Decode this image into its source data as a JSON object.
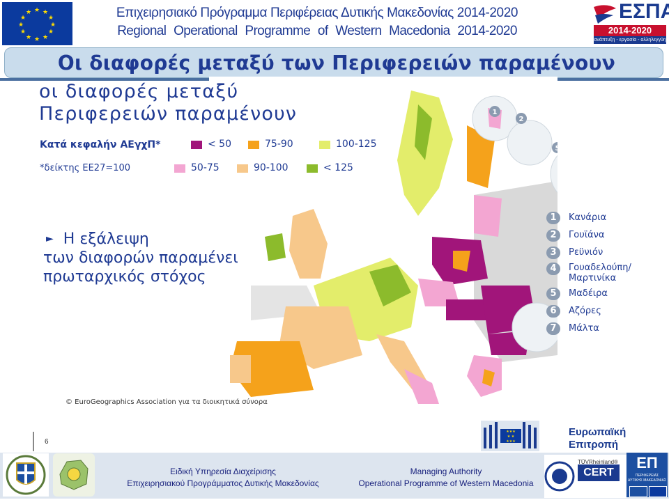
{
  "header": {
    "title_gr": "Επιχειρησιακό Πρόγραμμα Περιφέρειας Δυτικής Μακεδονίας  2014-2020",
    "title_en": "Regional  Operational  Programme  of  Western  Macedonia 2014-2020",
    "espa_logo_text": "ΕΣΠΑ",
    "espa_years": "2014-2020",
    "espa_slogan": "ανάπτυξη - εργασία - αλληλεγγύη"
  },
  "slide": {
    "title": "Οι διαφορές μεταξύ των Περιφερειών παραμένουν",
    "map_title_line1": "οι διαφορές μεταξύ",
    "map_title_line2": "Περιφερειών παραμένουν",
    "legend_heading": "Κατά κεφαλήν ΑΕγχΠ*",
    "legend_note": "*δείκτης ΕΕ27=100",
    "legend": [
      {
        "label": "< 50",
        "color": "#a1157a"
      },
      {
        "label": "75-90",
        "color": "#f5a21b"
      },
      {
        "label": "100-125",
        "color": "#e3ed6b"
      },
      {
        "label": "50-75",
        "color": "#f3a6d2"
      },
      {
        "label": "90-100",
        "color": "#f7c88b"
      },
      {
        "label": "< 125",
        "color": "#8cbb2c"
      }
    ],
    "bullet_line1": "Η εξάλειψη",
    "bullet_line2": "των διαφορών παραμένει",
    "bullet_line3": "πρωταρχικός στόχος",
    "copyright": "© EuroGeographics  Association για τα διοικητικά σύνορα",
    "outermost_regions": [
      {
        "num": "1",
        "name": "Κανάρια"
      },
      {
        "num": "2",
        "name": "Γουϊάνα"
      },
      {
        "num": "3",
        "name": "Ρεϋνιόν"
      },
      {
        "num": "4",
        "name": "Γουαδελούπη/ Μαρτινίκα"
      },
      {
        "num": "5",
        "name": "Μαδέιρα"
      },
      {
        "num": "6",
        "name": "Αζόρες"
      },
      {
        "num": "7",
        "name": "Μάλτα"
      }
    ],
    "slide_number": "6"
  },
  "footer": {
    "left_line1": "Ειδική Υπηρεσία Διαχείρισης",
    "left_line2": "Επιχειρησιακού Προγράμματος Δυτικής Μακεδονίας",
    "right_line1": "Managing Authority",
    "right_line2": "Operational Programme of Western  Macedonia",
    "ec_line1": "Ευρωπαϊκή",
    "ec_line2": "Επιτροπή",
    "tuv_brand": "TÜVRheinland®",
    "tuv_cert": "CERT",
    "ep_logo_text": "ΕΠ",
    "ep_logo_sub": "ΠΕΡΙΦΕΡΕΙΑΣ ΔΥΤΙΚΗΣ ΜΑΚΕΔΟΝΙΑΣ"
  }
}
